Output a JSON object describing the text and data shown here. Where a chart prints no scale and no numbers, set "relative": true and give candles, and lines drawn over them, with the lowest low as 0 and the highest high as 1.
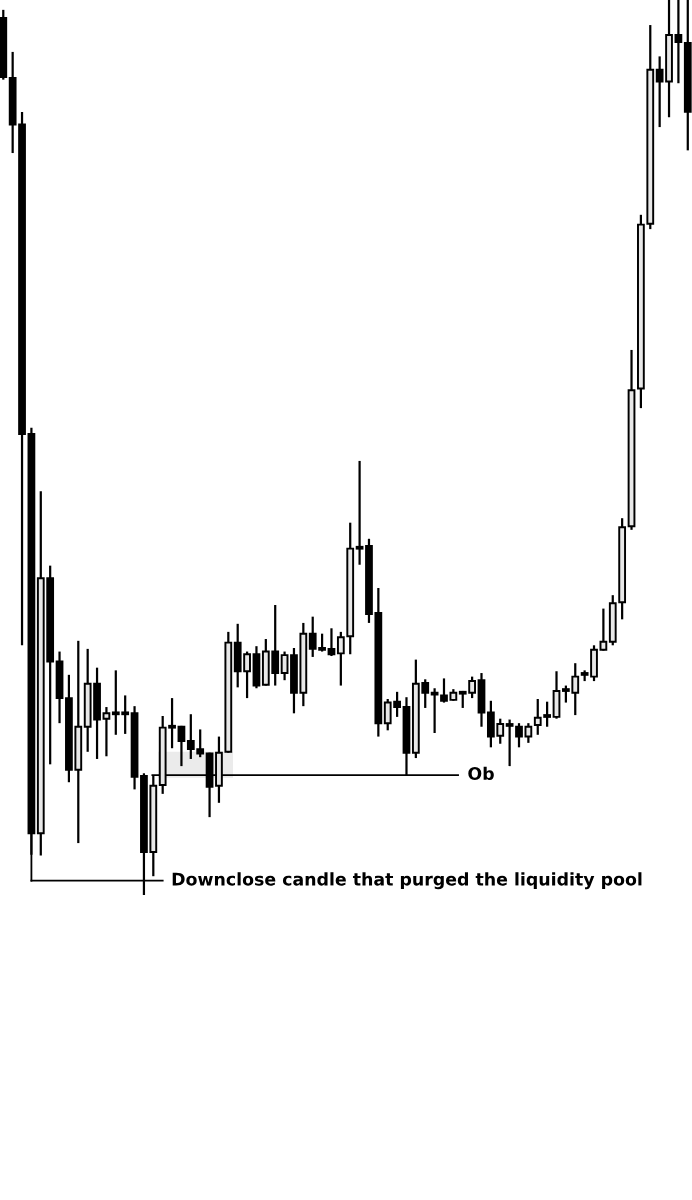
{
  "chart_data": {
    "type": "candlestick",
    "relative": true,
    "categories": [
      null,
      null,
      null,
      null,
      null,
      null,
      null,
      null,
      null,
      null,
      null,
      null,
      null,
      null,
      null,
      null,
      null,
      null,
      null,
      null,
      null,
      null,
      null,
      null,
      null,
      null,
      null,
      null,
      null,
      null,
      null,
      null,
      null,
      null,
      null,
      null,
      null,
      null,
      null,
      null,
      null,
      null,
      null,
      null,
      null,
      null,
      null,
      null,
      null,
      null,
      null,
      null,
      null,
      null,
      null,
      null,
      null,
      null,
      null,
      null,
      null,
      null,
      null,
      null,
      null,
      null,
      null,
      null,
      null,
      null,
      null,
      null,
      null,
      null
    ],
    "ohlc": [
      [
        0.98,
        0.989,
        0.911,
        0.914
      ],
      [
        0.913,
        0.942,
        0.829,
        0.861
      ],
      [
        0.861,
        0.875,
        0.279,
        0.515
      ],
      [
        0.515,
        0.522,
        0.045,
        0.069
      ],
      [
        0.069,
        0.451,
        0.044,
        0.354
      ],
      [
        0.354,
        0.368,
        0.146,
        0.261
      ],
      [
        0.261,
        0.272,
        0.192,
        0.22
      ],
      [
        0.22,
        0.246,
        0.126,
        0.14
      ],
      [
        0.14,
        0.284,
        0.058,
        0.188
      ],
      [
        0.188,
        0.275,
        0.16,
        0.236
      ],
      [
        0.236,
        0.254,
        0.152,
        0.196
      ],
      [
        0.197,
        0.21,
        0.155,
        0.203
      ],
      [
        0.202,
        0.251,
        0.179,
        0.203
      ],
      [
        0.203,
        0.223,
        0.18,
        0.202
      ],
      [
        0.203,
        0.211,
        0.118,
        0.132
      ],
      [
        0.133,
        0.136,
        0.0,
        0.048
      ],
      [
        0.048,
        0.134,
        0.021,
        0.122
      ],
      [
        0.123,
        0.2,
        0.113,
        0.187
      ],
      [
        0.187,
        0.22,
        0.164,
        0.188
      ],
      [
        0.188,
        0.189,
        0.144,
        0.172
      ],
      [
        0.172,
        0.202,
        0.152,
        0.163
      ],
      [
        0.163,
        0.185,
        0.154,
        0.158
      ],
      [
        0.158,
        0.159,
        0.087,
        0.121
      ],
      [
        0.122,
        0.177,
        0.103,
        0.159
      ],
      [
        0.16,
        0.294,
        0.159,
        0.282
      ],
      [
        0.282,
        0.303,
        0.232,
        0.25
      ],
      [
        0.25,
        0.272,
        0.22,
        0.269
      ],
      [
        0.269,
        0.278,
        0.231,
        0.234
      ],
      [
        0.235,
        0.286,
        0.234,
        0.272
      ],
      [
        0.272,
        0.324,
        0.234,
        0.248
      ],
      [
        0.248,
        0.272,
        0.24,
        0.268
      ],
      [
        0.268,
        0.276,
        0.203,
        0.226
      ],
      [
        0.226,
        0.304,
        0.211,
        0.292
      ],
      [
        0.292,
        0.311,
        0.266,
        0.275
      ],
      [
        0.276,
        0.292,
        0.272,
        0.274
      ],
      [
        0.275,
        0.298,
        0.267,
        0.269
      ],
      [
        0.27,
        0.294,
        0.234,
        0.288
      ],
      [
        0.289,
        0.416,
        0.269,
        0.387
      ],
      [
        0.389,
        0.485,
        0.369,
        0.387
      ],
      [
        0.39,
        0.398,
        0.304,
        0.314
      ],
      [
        0.315,
        0.343,
        0.177,
        0.192
      ],
      [
        0.192,
        0.219,
        0.184,
        0.215
      ],
      [
        0.216,
        0.227,
        0.199,
        0.21
      ],
      [
        0.21,
        0.221,
        0.133,
        0.159
      ],
      [
        0.159,
        0.263,
        0.153,
        0.236
      ],
      [
        0.237,
        0.241,
        0.209,
        0.226
      ],
      [
        0.225,
        0.231,
        0.181,
        0.224
      ],
      [
        0.223,
        0.242,
        0.215,
        0.217
      ],
      [
        0.218,
        0.23,
        0.217,
        0.226
      ],
      [
        0.226,
        0.228,
        0.209,
        0.225
      ],
      [
        0.226,
        0.244,
        0.22,
        0.239
      ],
      [
        0.24,
        0.248,
        0.188,
        0.204
      ],
      [
        0.204,
        0.217,
        0.165,
        0.177
      ],
      [
        0.178,
        0.197,
        0.169,
        0.191
      ],
      [
        0.191,
        0.196,
        0.144,
        0.189
      ],
      [
        0.188,
        0.192,
        0.165,
        0.177
      ],
      [
        0.177,
        0.192,
        0.17,
        0.188
      ],
      [
        0.19,
        0.219,
        0.179,
        0.198
      ],
      [
        0.199,
        0.216,
        0.188,
        0.2
      ],
      [
        0.199,
        0.25,
        0.197,
        0.228
      ],
      [
        0.228,
        0.234,
        0.215,
        0.229
      ],
      [
        0.226,
        0.259,
        0.201,
        0.244
      ],
      [
        0.246,
        0.251,
        0.239,
        0.247
      ],
      [
        0.244,
        0.279,
        0.239,
        0.274
      ],
      [
        0.274,
        0.32,
        0.273,
        0.283
      ],
      [
        0.283,
        0.335,
        0.279,
        0.326
      ],
      [
        0.327,
        0.421,
        0.308,
        0.411
      ],
      [
        0.412,
        0.609,
        0.408,
        0.564
      ],
      [
        0.566,
        0.76,
        0.544,
        0.749
      ],
      [
        0.75,
        0.972,
        0.744,
        0.922
      ],
      [
        0.922,
        0.937,
        0.858,
        0.909
      ],
      [
        0.909,
        1.0,
        0.869,
        0.961
      ],
      [
        0.961,
        1.0,
        0.907,
        0.953
      ],
      [
        0.952,
        1.0,
        0.832,
        0.875
      ]
    ],
    "color": "#000000",
    "bands": [
      {
        "axis": "y",
        "from": 0.131,
        "to": 0.16,
        "color": "#ebebeb"
      }
    ],
    "annotations": [
      "Ob",
      "Downclose candle that purged the liquidity pool"
    ]
  }
}
